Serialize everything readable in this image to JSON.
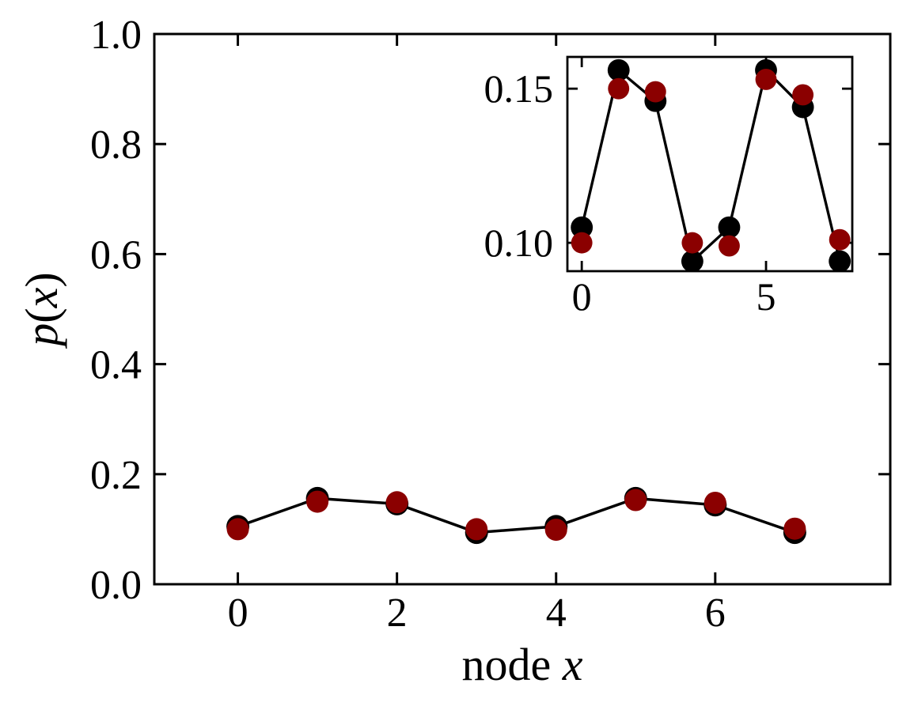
{
  "chart_data": {
    "type": "line",
    "title": "",
    "background_color": "#ffffff",
    "axes_color": "#000000",
    "x": [
      0,
      1,
      2,
      3,
      4,
      5,
      6,
      7
    ],
    "series": [
      {
        "name": "black-circle-line-series",
        "color": "#000000",
        "marker": "circle",
        "has_line": true,
        "values": [
          0.105,
          0.156,
          0.146,
          0.094,
          0.105,
          0.156,
          0.144,
          0.094
        ]
      },
      {
        "name": "dark-red-circle-series",
        "color": "#8b0000",
        "marker": "circle",
        "has_line": false,
        "values": [
          0.1,
          0.15,
          0.149,
          0.1,
          0.099,
          0.153,
          0.148,
          0.101
        ]
      }
    ],
    "main_axes": {
      "xlabel": "node x",
      "ylabel": "p(x)",
      "xlabel_parts": [
        {
          "text": "node ",
          "italic": false
        },
        {
          "text": "x",
          "italic": true
        }
      ],
      "ylabel_parts": [
        {
          "text": "p",
          "italic": true
        },
        {
          "text": "(",
          "italic": false
        },
        {
          "text": "x",
          "italic": true
        },
        {
          "text": ")",
          "italic": false
        }
      ],
      "xlim": [
        -1.05,
        8.2
      ],
      "ylim": [
        0,
        1
      ],
      "xticks": [
        {
          "value": 0,
          "label": "0"
        },
        {
          "value": 2,
          "label": "2"
        },
        {
          "value": 4,
          "label": "4"
        },
        {
          "value": 6,
          "label": "6"
        }
      ],
      "yticks": [
        {
          "value": 0.0,
          "label": "0.0"
        },
        {
          "value": 0.2,
          "label": "0.2"
        },
        {
          "value": 0.4,
          "label": "0.4"
        },
        {
          "value": 0.6,
          "label": "0.6"
        },
        {
          "value": 0.8,
          "label": "0.8"
        },
        {
          "value": 1.0,
          "label": "1.0"
        }
      ],
      "grid": false,
      "legend": null
    },
    "inset_axes": {
      "xlim": [
        -0.39,
        7.34
      ],
      "ylim": [
        0.0908,
        0.1603
      ],
      "xticks": [
        {
          "value": 0,
          "label": "0"
        },
        {
          "value": 5,
          "label": "5"
        }
      ],
      "yticks": [
        {
          "value": 0.1,
          "label": "0.10"
        },
        {
          "value": 0.15,
          "label": "0.15"
        }
      ],
      "grid": false
    }
  }
}
